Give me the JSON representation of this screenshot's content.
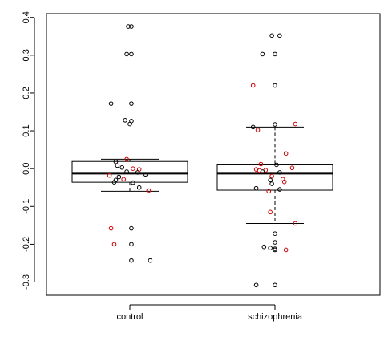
{
  "chart_data": {
    "type": "box",
    "categories": [
      "control",
      "schizophrenia"
    ],
    "yticks": [
      -0.3,
      -0.2,
      -0.1,
      0.0,
      0.1,
      0.2,
      0.3,
      0.4
    ],
    "ytick_labels": [
      "-0.3",
      "-0.2",
      "-0.1",
      "0.0",
      "0.1",
      "0.2",
      "0.3",
      "0.4"
    ],
    "ylim": [
      -0.335,
      0.41
    ],
    "boxes": [
      {
        "name": "control",
        "lower_whisker": -0.06,
        "q1": -0.036,
        "median": -0.012,
        "q3": 0.019,
        "upper_whisker": 0.025
      },
      {
        "name": "schizophrenia",
        "lower_whisker": -0.145,
        "q1": -0.057,
        "median": -0.012,
        "q3": 0.01,
        "upper_whisker": 0.11
      }
    ],
    "points": [
      {
        "group": "control",
        "x_offset": -0.01,
        "y": 0.376,
        "color": "#000000"
      },
      {
        "group": "control",
        "x_offset": 0.01,
        "y": 0.376,
        "color": "#000000"
      },
      {
        "group": "control",
        "x_offset": -0.02,
        "y": 0.303,
        "color": "#000000"
      },
      {
        "group": "control",
        "x_offset": 0.01,
        "y": 0.303,
        "color": "#000000"
      },
      {
        "group": "control",
        "x_offset": -0.12,
        "y": 0.172,
        "color": "#000000"
      },
      {
        "group": "control",
        "x_offset": 0.01,
        "y": 0.172,
        "color": "#000000"
      },
      {
        "group": "control",
        "x_offset": -0.03,
        "y": 0.128,
        "color": "#000000"
      },
      {
        "group": "control",
        "x_offset": 0.01,
        "y": 0.126,
        "color": "#000000"
      },
      {
        "group": "control",
        "x_offset": 0.0,
        "y": 0.118,
        "color": "#000000"
      },
      {
        "group": "control",
        "x_offset": -0.02,
        "y": 0.025,
        "color": "#cc0000"
      },
      {
        "group": "control",
        "x_offset": -0.09,
        "y": 0.018,
        "color": "#000000"
      },
      {
        "group": "control",
        "x_offset": -0.08,
        "y": 0.008,
        "color": "#000000"
      },
      {
        "group": "control",
        "x_offset": -0.05,
        "y": 0.003,
        "color": "#000000"
      },
      {
        "group": "control",
        "x_offset": 0.02,
        "y": 0.0,
        "color": "#cc0000"
      },
      {
        "group": "control",
        "x_offset": 0.06,
        "y": -0.002,
        "color": "#cc0000"
      },
      {
        "group": "control",
        "x_offset": -0.02,
        "y": -0.008,
        "color": "#000000"
      },
      {
        "group": "control",
        "x_offset": 0.05,
        "y": -0.01,
        "color": "#000000"
      },
      {
        "group": "control",
        "x_offset": 0.1,
        "y": -0.015,
        "color": "#000000"
      },
      {
        "group": "control",
        "x_offset": -0.13,
        "y": -0.018,
        "color": "#cc0000"
      },
      {
        "group": "control",
        "x_offset": -0.07,
        "y": -0.022,
        "color": "#000000"
      },
      {
        "group": "control",
        "x_offset": -0.04,
        "y": -0.028,
        "color": "#cc0000"
      },
      {
        "group": "control",
        "x_offset": -0.09,
        "y": -0.03,
        "color": "#000000"
      },
      {
        "group": "control",
        "x_offset": -0.1,
        "y": -0.036,
        "color": "#000000"
      },
      {
        "group": "control",
        "x_offset": 0.02,
        "y": -0.037,
        "color": "#000000"
      },
      {
        "group": "control",
        "x_offset": 0.06,
        "y": -0.05,
        "color": "#000000"
      },
      {
        "group": "control",
        "x_offset": 0.12,
        "y": -0.058,
        "color": "#cc0000"
      },
      {
        "group": "control",
        "x_offset": -0.12,
        "y": -0.158,
        "color": "#cc0000"
      },
      {
        "group": "control",
        "x_offset": 0.01,
        "y": -0.158,
        "color": "#000000"
      },
      {
        "group": "control",
        "x_offset": -0.1,
        "y": -0.2,
        "color": "#cc0000"
      },
      {
        "group": "control",
        "x_offset": 0.01,
        "y": -0.2,
        "color": "#000000"
      },
      {
        "group": "control",
        "x_offset": 0.01,
        "y": -0.243,
        "color": "#000000"
      },
      {
        "group": "control",
        "x_offset": 0.13,
        "y": -0.243,
        "color": "#000000"
      },
      {
        "group": "schizophrenia",
        "x_offset": -0.02,
        "y": 0.352,
        "color": "#000000"
      },
      {
        "group": "schizophrenia",
        "x_offset": 0.03,
        "y": 0.352,
        "color": "#000000"
      },
      {
        "group": "schizophrenia",
        "x_offset": -0.08,
        "y": 0.303,
        "color": "#000000"
      },
      {
        "group": "schizophrenia",
        "x_offset": 0.0,
        "y": 0.303,
        "color": "#000000"
      },
      {
        "group": "schizophrenia",
        "x_offset": -0.14,
        "y": 0.22,
        "color": "#cc0000"
      },
      {
        "group": "schizophrenia",
        "x_offset": 0.0,
        "y": 0.22,
        "color": "#000000"
      },
      {
        "group": "schizophrenia",
        "x_offset": 0.0,
        "y": 0.117,
        "color": "#000000"
      },
      {
        "group": "schizophrenia",
        "x_offset": 0.13,
        "y": 0.118,
        "color": "#cc0000"
      },
      {
        "group": "schizophrenia",
        "x_offset": -0.14,
        "y": 0.11,
        "color": "#000000"
      },
      {
        "group": "schizophrenia",
        "x_offset": -0.11,
        "y": 0.102,
        "color": "#cc0000"
      },
      {
        "group": "schizophrenia",
        "x_offset": 0.07,
        "y": 0.04,
        "color": "#cc0000"
      },
      {
        "group": "schizophrenia",
        "x_offset": -0.09,
        "y": 0.012,
        "color": "#cc0000"
      },
      {
        "group": "schizophrenia",
        "x_offset": 0.01,
        "y": 0.01,
        "color": "#000000"
      },
      {
        "group": "schizophrenia",
        "x_offset": 0.11,
        "y": 0.002,
        "color": "#cc0000"
      },
      {
        "group": "schizophrenia",
        "x_offset": -0.12,
        "y": -0.002,
        "color": "#cc0000"
      },
      {
        "group": "schizophrenia",
        "x_offset": -0.06,
        "y": -0.004,
        "color": "#cc0000"
      },
      {
        "group": "schizophrenia",
        "x_offset": -0.1,
        "y": -0.005,
        "color": "#cc0000"
      },
      {
        "group": "schizophrenia",
        "x_offset": -0.08,
        "y": -0.008,
        "color": "#000000"
      },
      {
        "group": "schizophrenia",
        "x_offset": 0.03,
        "y": -0.01,
        "color": "#000000"
      },
      {
        "group": "schizophrenia",
        "x_offset": -0.02,
        "y": -0.02,
        "color": "#cc0000"
      },
      {
        "group": "schizophrenia",
        "x_offset": 0.05,
        "y": -0.028,
        "color": "#cc0000"
      },
      {
        "group": "schizophrenia",
        "x_offset": -0.03,
        "y": -0.03,
        "color": "#000000"
      },
      {
        "group": "schizophrenia",
        "x_offset": 0.06,
        "y": -0.035,
        "color": "#cc0000"
      },
      {
        "group": "schizophrenia",
        "x_offset": -0.02,
        "y": -0.04,
        "color": "#000000"
      },
      {
        "group": "schizophrenia",
        "x_offset": -0.12,
        "y": -0.052,
        "color": "#000000"
      },
      {
        "group": "schizophrenia",
        "x_offset": 0.03,
        "y": -0.055,
        "color": "#000000"
      },
      {
        "group": "schizophrenia",
        "x_offset": -0.04,
        "y": -0.06,
        "color": "#cc0000"
      },
      {
        "group": "schizophrenia",
        "x_offset": -0.03,
        "y": -0.115,
        "color": "#cc0000"
      },
      {
        "group": "schizophrenia",
        "x_offset": 0.13,
        "y": -0.145,
        "color": "#cc0000"
      },
      {
        "group": "schizophrenia",
        "x_offset": 0.0,
        "y": -0.172,
        "color": "#000000"
      },
      {
        "group": "schizophrenia",
        "x_offset": 0.0,
        "y": -0.195,
        "color": "#000000"
      },
      {
        "group": "schizophrenia",
        "x_offset": -0.07,
        "y": -0.207,
        "color": "#000000"
      },
      {
        "group": "schizophrenia",
        "x_offset": -0.03,
        "y": -0.21,
        "color": "#000000"
      },
      {
        "group": "schizophrenia",
        "x_offset": 0.0,
        "y": -0.212,
        "color": "#000000"
      },
      {
        "group": "schizophrenia",
        "x_offset": 0.0,
        "y": -0.215,
        "color": "#000000"
      },
      {
        "group": "schizophrenia",
        "x_offset": 0.07,
        "y": -0.215,
        "color": "#cc0000"
      },
      {
        "group": "schizophrenia",
        "x_offset": -0.12,
        "y": -0.308,
        "color": "#000000"
      },
      {
        "group": "schizophrenia",
        "x_offset": 0.0,
        "y": -0.308,
        "color": "#000000"
      }
    ],
    "colors": {
      "point_black": "#000000",
      "point_red": "#cc0000",
      "box": "#000000"
    }
  }
}
